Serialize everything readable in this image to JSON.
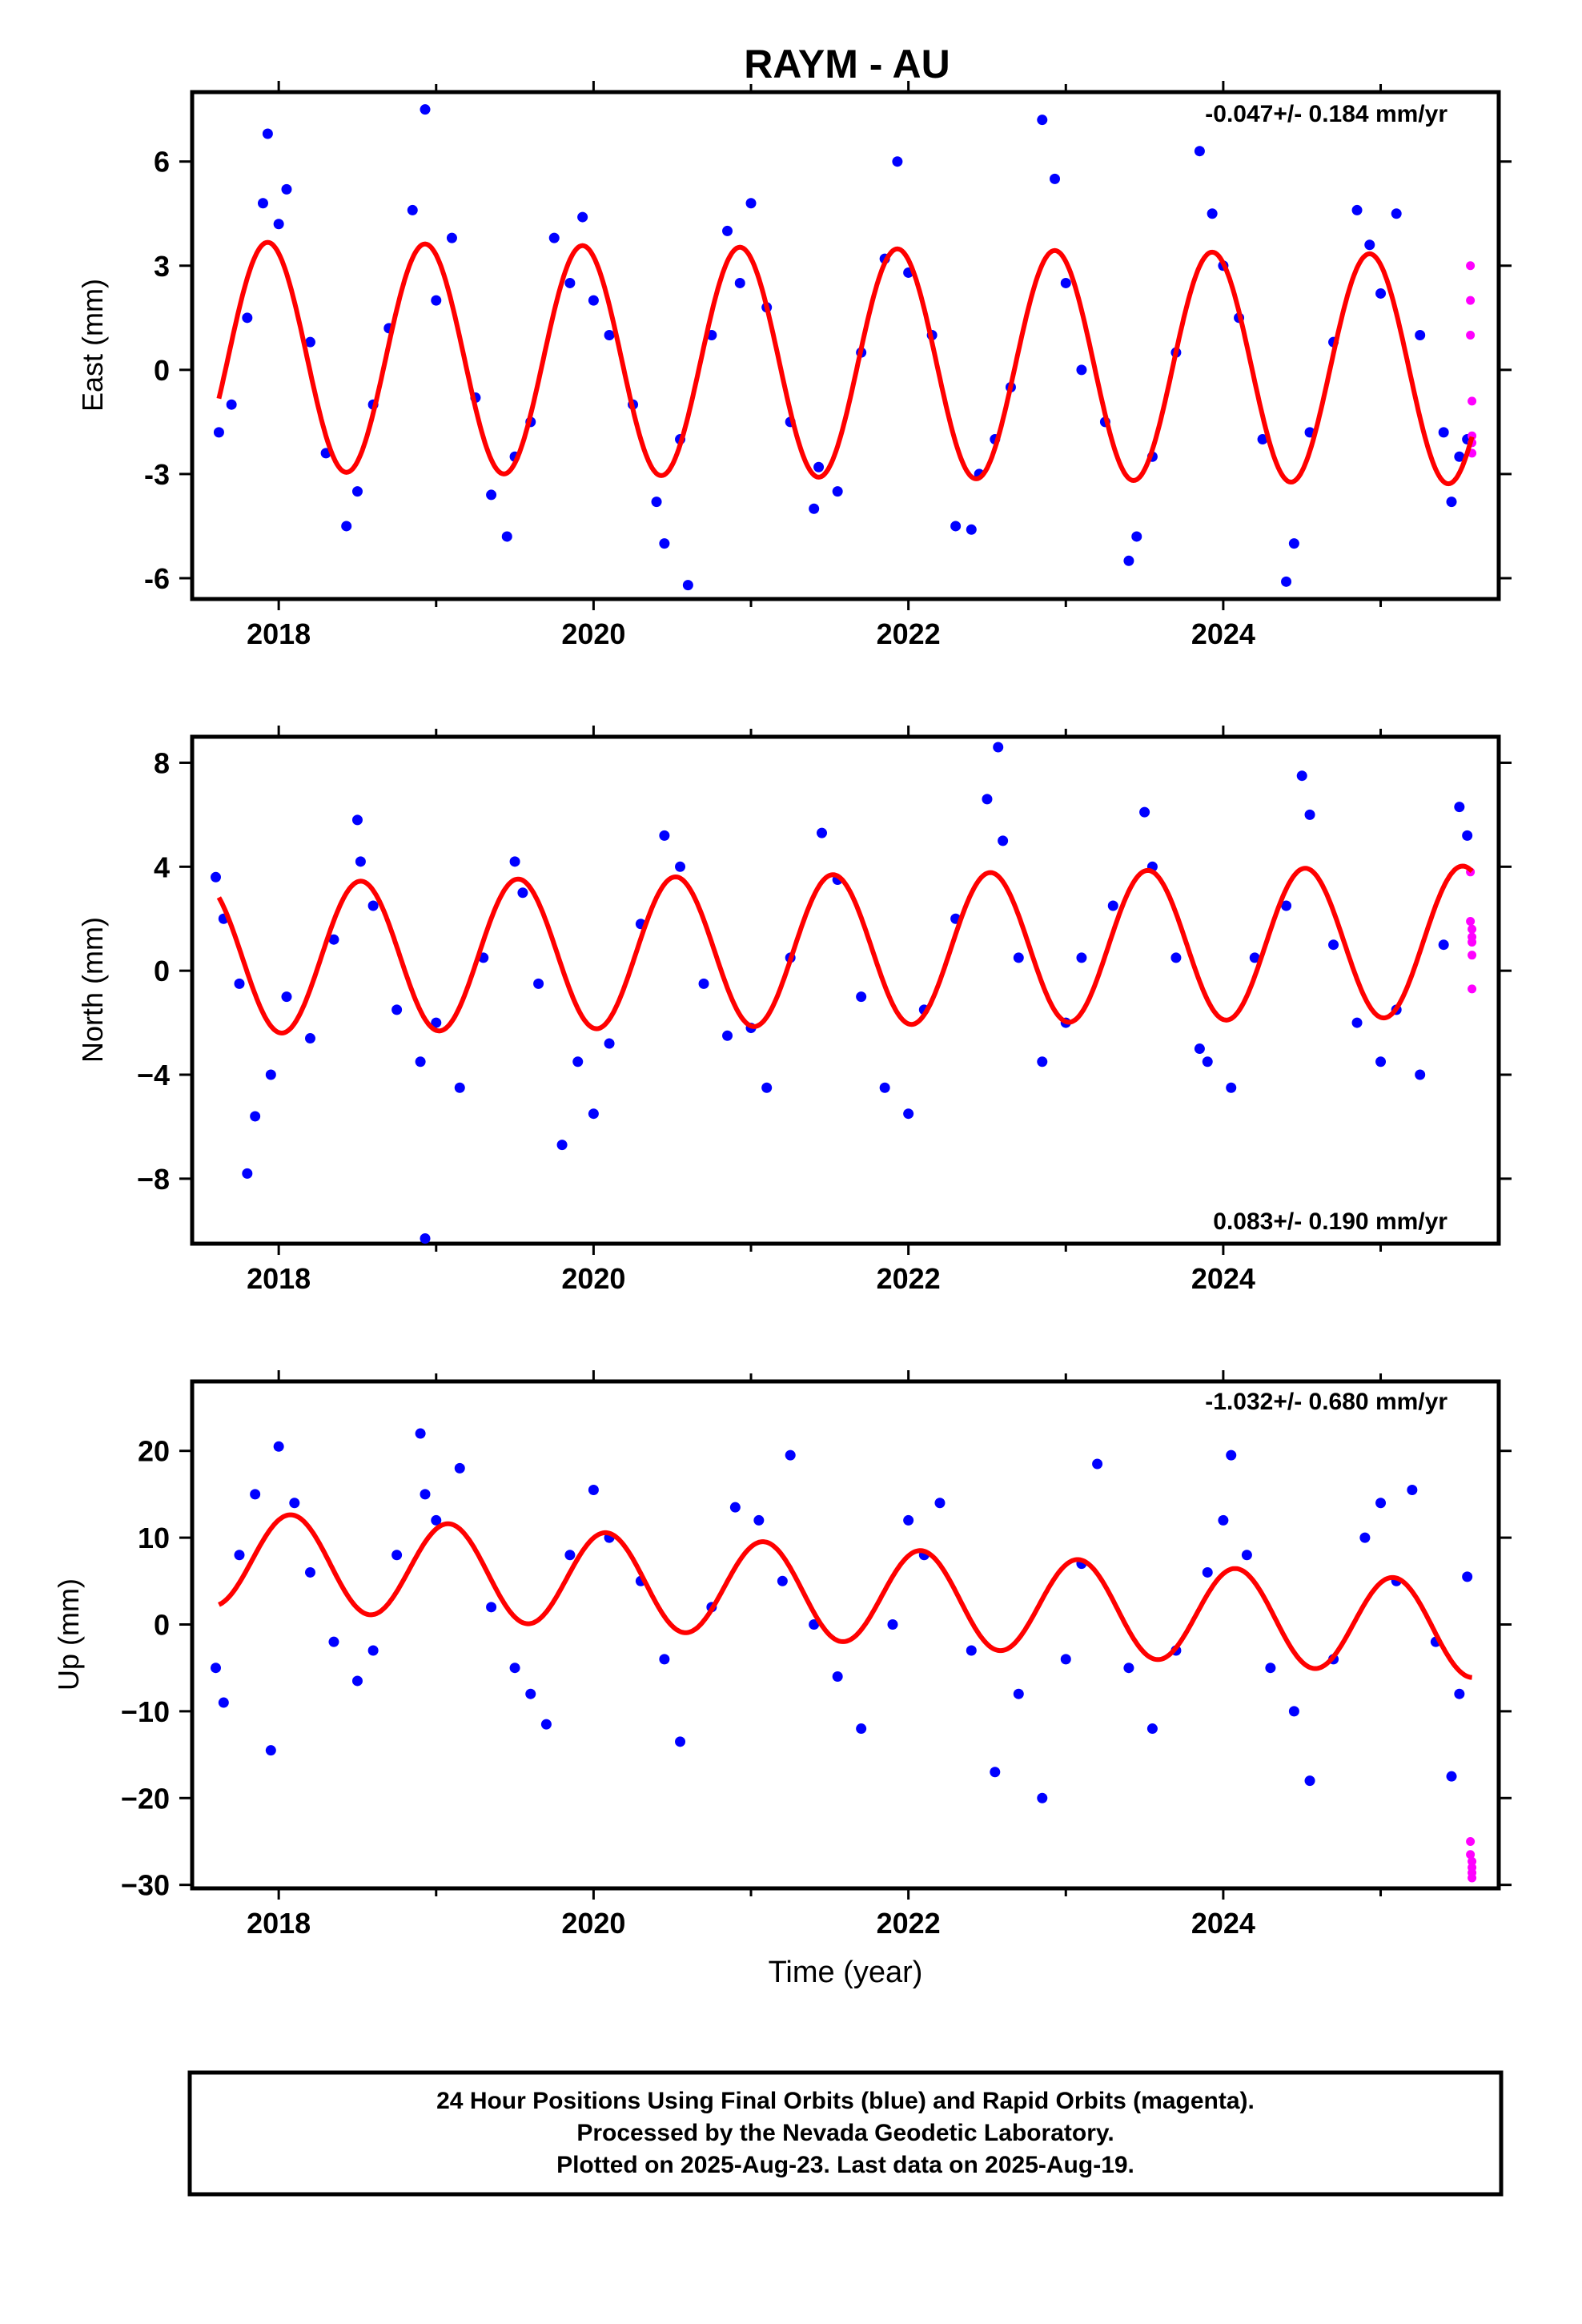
{
  "chart_data": {
    "type": "scatter",
    "title": "RAYM - AU",
    "xlabel": "Time (year)",
    "x_ticks": [
      "2018",
      "2020",
      "2022",
      "2024"
    ],
    "xlim": [
      2017.45,
      2025.75
    ],
    "colors": {
      "final": "#0000ff",
      "rapid": "#ff00ff",
      "fit": "#ff0000",
      "frame": "#000000"
    },
    "panels": [
      {
        "id": "east",
        "ylabel": "East (mm)",
        "ylim": [
          -6.6,
          8.0
        ],
        "y_ticks": [
          "6",
          "3",
          "0",
          "-3",
          "-6"
        ],
        "rate_label": "-0.047+/- 0.184 mm/yr",
        "rate_position": "top-right",
        "fit": {
          "mean": 0.2,
          "trend": -0.047,
          "annual_amp": 3.3,
          "annual_phase_year": 2017.93,
          "semiannual_amp": 0.0,
          "semiannual_phase_year": 2018.0
        },
        "final_orbits": {
          "x": [
            2017.62,
            2017.7,
            2017.8,
            2017.9,
            2017.93,
            2018.0,
            2018.05,
            2018.2,
            2018.3,
            2018.43,
            2018.5,
            2018.6,
            2018.7,
            2018.85,
            2018.93,
            2019.0,
            2019.1,
            2019.25,
            2019.35,
            2019.45,
            2019.5,
            2019.6,
            2019.75,
            2019.85,
            2019.93,
            2020.0,
            2020.1,
            2020.25,
            2020.4,
            2020.45,
            2020.55,
            2020.6,
            2020.75,
            2020.85,
            2020.93,
            2021.0,
            2021.1,
            2021.25,
            2021.4,
            2021.43,
            2021.55,
            2021.7,
            2021.85,
            2021.93,
            2022.0,
            2022.15,
            2022.3,
            2022.4,
            2022.45,
            2022.55,
            2022.65,
            2022.85,
            2022.93,
            2023.0,
            2023.1,
            2023.25,
            2023.4,
            2023.45,
            2023.55,
            2023.7,
            2023.85,
            2023.93,
            2024.0,
            2024.1,
            2024.25,
            2024.4,
            2024.45,
            2024.55,
            2024.7,
            2024.85,
            2024.93,
            2025.0,
            2025.1,
            2025.25,
            2025.4,
            2025.45,
            2025.5,
            2025.55
          ],
          "y": [
            -1.8,
            -1.0,
            1.5,
            4.8,
            6.8,
            4.2,
            5.2,
            0.8,
            -2.4,
            -4.5,
            -3.5,
            -1.0,
            1.2,
            4.6,
            7.5,
            2.0,
            3.8,
            -0.8,
            -3.6,
            -4.8,
            -2.5,
            -1.5,
            3.8,
            2.5,
            4.4,
            2.0,
            1.0,
            -1.0,
            -3.8,
            -5.0,
            -2.0,
            -6.2,
            1.0,
            4.0,
            2.5,
            4.8,
            1.8,
            -1.5,
            -4.0,
            -2.8,
            -3.5,
            0.5,
            3.2,
            6.0,
            2.8,
            1.0,
            -4.5,
            -4.6,
            -3.0,
            -2.0,
            -0.5,
            7.2,
            5.5,
            2.5,
            0.0,
            -1.5,
            -5.5,
            -4.8,
            -2.5,
            0.5,
            6.3,
            4.5,
            3.0,
            1.5,
            -2.0,
            -6.1,
            -5.0,
            -1.8,
            0.8,
            4.6,
            3.6,
            2.2,
            4.5,
            1.0,
            -1.8,
            -3.8,
            -2.5,
            -2.0
          ]
        },
        "rapid_orbits": {
          "x": [
            2025.57,
            2025.57,
            2025.57,
            2025.58,
            2025.58,
            2025.58,
            2025.58
          ],
          "y": [
            3.0,
            2.0,
            1.0,
            -0.9,
            -1.9,
            -2.1,
            -2.4
          ]
        }
      },
      {
        "id": "north",
        "ylabel": "North (mm)",
        "ylim": [
          -10.5,
          9.0
        ],
        "y_ticks": [
          "8",
          "4",
          "0",
          "−4",
          "−8"
        ],
        "rate_label": "0.083+/- 0.190 mm/yr",
        "rate_position": "bottom-right",
        "fit": {
          "mean": 0.8,
          "trend": 0.083,
          "annual_amp": 2.9,
          "annual_phase_year": 2018.52,
          "semiannual_amp": 0.0,
          "semiannual_phase_year": 2018.0
        },
        "final_orbits": {
          "x": [
            2017.6,
            2017.65,
            2017.75,
            2017.8,
            2017.85,
            2017.95,
            2018.05,
            2018.2,
            2018.35,
            2018.5,
            2018.52,
            2018.6,
            2018.75,
            2018.9,
            2018.93,
            2019.0,
            2019.15,
            2019.3,
            2019.5,
            2019.55,
            2019.65,
            2019.8,
            2019.9,
            2020.0,
            2020.1,
            2020.3,
            2020.45,
            2020.55,
            2020.7,
            2020.85,
            2021.0,
            2021.1,
            2021.25,
            2021.45,
            2021.55,
            2021.7,
            2021.85,
            2022.0,
            2022.1,
            2022.3,
            2022.5,
            2022.57,
            2022.6,
            2022.7,
            2022.85,
            2023.0,
            2023.1,
            2023.3,
            2023.5,
            2023.55,
            2023.7,
            2023.85,
            2023.9,
            2024.05,
            2024.2,
            2024.4,
            2024.5,
            2024.55,
            2024.7,
            2024.85,
            2025.0,
            2025.1,
            2025.25,
            2025.4,
            2025.5,
            2025.55
          ],
          "y": [
            3.6,
            2.0,
            -0.5,
            -7.8,
            -5.6,
            -4.0,
            -1.0,
            -2.6,
            1.2,
            5.8,
            4.2,
            2.5,
            -1.5,
            -3.5,
            -10.3,
            -2.0,
            -4.5,
            0.5,
            4.2,
            3.0,
            -0.5,
            -6.7,
            -3.5,
            -5.5,
            -2.8,
            1.8,
            5.2,
            4.0,
            -0.5,
            -2.5,
            -2.2,
            -4.5,
            0.5,
            5.3,
            3.5,
            -1.0,
            -4.5,
            -5.5,
            -1.5,
            2.0,
            6.6,
            8.6,
            5.0,
            0.5,
            -3.5,
            -2.0,
            0.5,
            2.5,
            6.1,
            4.0,
            0.5,
            -3.0,
            -3.5,
            -4.5,
            0.5,
            2.5,
            7.5,
            6.0,
            1.0,
            -2.0,
            -3.5,
            -1.5,
            -4.0,
            1.0,
            6.3,
            5.2
          ]
        },
        "rapid_orbits": {
          "x": [
            2025.57,
            2025.57,
            2025.58,
            2025.58,
            2025.58,
            2025.58,
            2025.58
          ],
          "y": [
            3.8,
            1.9,
            1.6,
            1.3,
            1.1,
            0.6,
            -0.7
          ]
        }
      },
      {
        "id": "up",
        "ylabel": "Up (mm)",
        "ylim": [
          -30.4,
          28.0
        ],
        "y_ticks": [
          "20",
          "10",
          "0",
          "−10",
          "−20",
          "−30"
        ],
        "rate_label": "-1.032+/- 0.680 mm/yr",
        "rate_position": "top-right",
        "fit": {
          "mean": 3.5,
          "trend": -1.032,
          "annual_amp": 5.5,
          "annual_phase_year": 2018.08,
          "semiannual_amp": 0.0,
          "semiannual_phase_year": 2018.0
        },
        "final_orbits": {
          "x": [
            2017.6,
            2017.65,
            2017.75,
            2017.85,
            2017.95,
            2018.0,
            2018.1,
            2018.2,
            2018.35,
            2018.5,
            2018.6,
            2018.75,
            2018.9,
            2018.93,
            2019.0,
            2019.15,
            2019.35,
            2019.5,
            2019.6,
            2019.7,
            2019.85,
            2020.0,
            2020.1,
            2020.3,
            2020.45,
            2020.55,
            2020.75,
            2020.9,
            2021.05,
            2021.2,
            2021.25,
            2021.4,
            2021.55,
            2021.7,
            2021.9,
            2022.0,
            2022.1,
            2022.2,
            2022.4,
            2022.55,
            2022.7,
            2022.85,
            2023.0,
            2023.1,
            2023.2,
            2023.4,
            2023.55,
            2023.7,
            2023.9,
            2024.0,
            2024.05,
            2024.15,
            2024.3,
            2024.45,
            2024.55,
            2024.7,
            2024.9,
            2025.0,
            2025.1,
            2025.2,
            2025.35,
            2025.45,
            2025.5,
            2025.55
          ],
          "y": [
            -5.0,
            -9.0,
            8.0,
            15.0,
            -14.5,
            20.5,
            14.0,
            6.0,
            -2.0,
            -6.5,
            -3.0,
            8.0,
            22.0,
            15.0,
            12.0,
            18.0,
            2.0,
            -5.0,
            -8.0,
            -11.5,
            8.0,
            15.5,
            10.0,
            5.0,
            -4.0,
            -13.5,
            2.0,
            13.5,
            12.0,
            5.0,
            19.5,
            0.0,
            -6.0,
            -12.0,
            0.0,
            12.0,
            8.0,
            14.0,
            -3.0,
            -17.0,
            -8.0,
            -20.0,
            -4.0,
            7.0,
            18.5,
            -5.0,
            -12.0,
            -3.0,
            6.0,
            12.0,
            19.5,
            8.0,
            -5.0,
            -10.0,
            -18.0,
            -4.0,
            10.0,
            14.0,
            5.0,
            15.5,
            -2.0,
            -17.5,
            -8.0,
            5.5
          ]
        },
        "rapid_orbits": {
          "x": [
            2025.57,
            2025.57,
            2025.58,
            2025.58,
            2025.58,
            2025.58
          ],
          "y": [
            -25.0,
            -26.5,
            -27.3,
            -28.0,
            -28.6,
            -29.2
          ]
        }
      }
    ]
  },
  "footer": {
    "line1": "24 Hour Positions Using Final Orbits (blue) and Rapid Orbits (magenta).",
    "line2": "Processed by the Nevada Geodetic Laboratory.",
    "line3": "Plotted on 2025-Aug-23. Last data on 2025-Aug-19."
  }
}
